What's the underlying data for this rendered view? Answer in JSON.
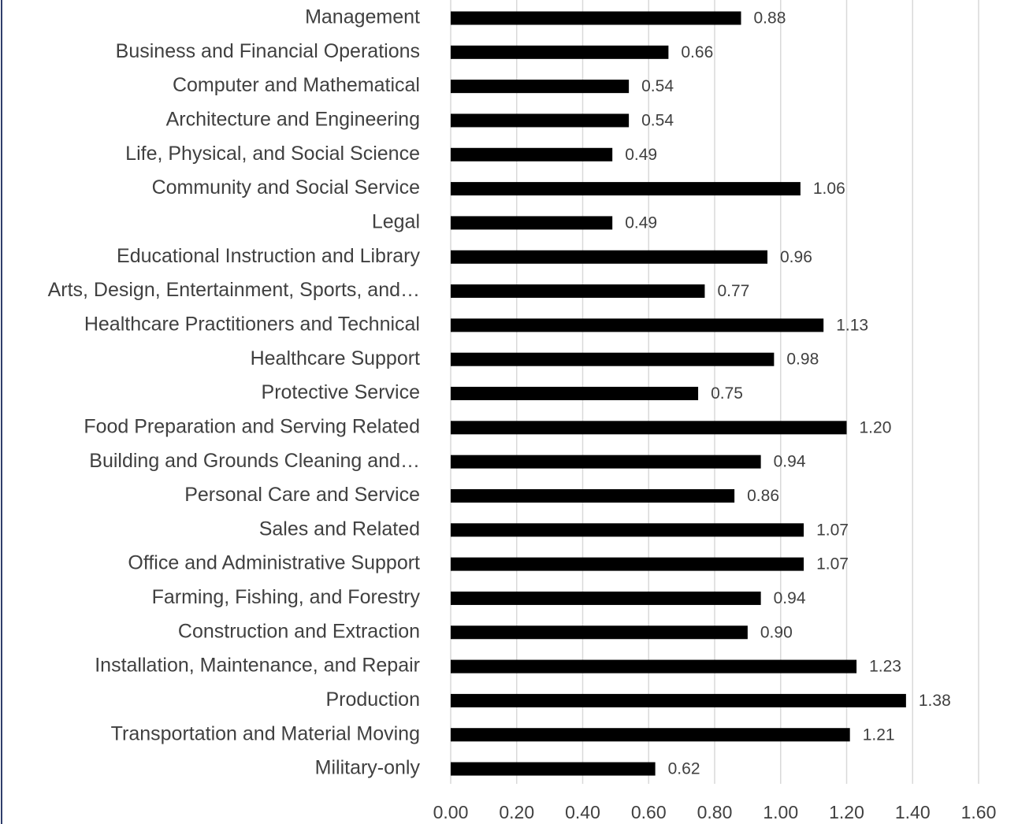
{
  "chart_data": {
    "type": "hbar",
    "categories": [
      "Management",
      "Business and Financial Operations",
      "Computer and Mathematical",
      "Architecture and Engineering",
      "Life, Physical, and Social Science",
      "Community and Social Service",
      "Legal",
      "Educational Instruction and Library",
      "Arts, Design, Entertainment, Sports, and…",
      "Healthcare Practitioners and Technical",
      "Healthcare Support",
      "Protective Service",
      "Food Preparation and Serving Related",
      "Building and Grounds Cleaning and…",
      "Personal Care and Service",
      "Sales and Related",
      "Office and Administrative Support",
      "Farming, Fishing, and Forestry",
      "Construction and Extraction",
      "Installation, Maintenance, and Repair",
      "Production",
      "Transportation and Material Moving",
      "Military-only"
    ],
    "values": [
      0.88,
      0.66,
      0.54,
      0.54,
      0.49,
      1.06,
      0.49,
      0.96,
      0.77,
      1.13,
      0.98,
      0.75,
      1.2,
      0.94,
      0.86,
      1.07,
      1.07,
      0.94,
      0.9,
      1.23,
      1.38,
      1.21,
      0.62
    ],
    "value_labels": [
      "0.88",
      "0.66",
      "0.54",
      "0.54",
      "0.49",
      "1.06",
      "0.49",
      "0.96",
      "0.77",
      "1.13",
      "0.98",
      "0.75",
      "1.20",
      "0.94",
      "0.86",
      "1.07",
      "1.07",
      "0.94",
      "0.90",
      "1.23",
      "1.38",
      "1.21",
      "0.62"
    ],
    "color": "#000000",
    "xlim": [
      0,
      1.6
    ],
    "xticks": [
      {
        "value": 0,
        "label": "0.00"
      },
      {
        "value": 0.2,
        "label": "0.20"
      },
      {
        "value": 0.4,
        "label": "0.40"
      },
      {
        "value": 0.6,
        "label": "0.60"
      },
      {
        "value": 0.8,
        "label": "0.80"
      },
      {
        "value": 1.0,
        "label": "1.00"
      },
      {
        "value": 1.2,
        "label": "1.20"
      },
      {
        "value": 1.4,
        "label": "1.40"
      },
      {
        "value": 1.6,
        "label": "1.60"
      }
    ],
    "grid": true
  }
}
